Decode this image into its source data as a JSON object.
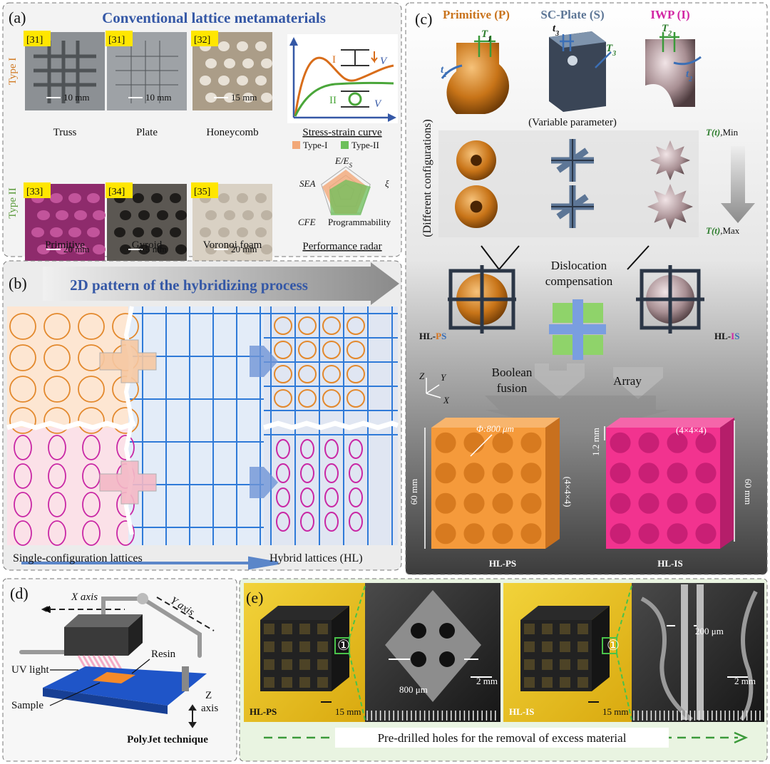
{
  "panel_a": {
    "label": "(a)",
    "title": "Conventional lattice metamaterials",
    "type_i": "Type I",
    "type_ii": "Type II",
    "samples": [
      {
        "ref": "[31]",
        "scale": "10 mm",
        "name": "Truss"
      },
      {
        "ref": "[31]",
        "scale": "10 mm",
        "name": "Plate"
      },
      {
        "ref": "[32]",
        "scale": "15 mm",
        "name": "Honeycomb"
      },
      {
        "ref": "[33]",
        "scale": "20 mm",
        "name": "Primitive"
      },
      {
        "ref": "[34]",
        "scale": "5 mm",
        "name": "Gyroid"
      },
      {
        "ref": "[35]",
        "scale": "20 mm",
        "name": "Voronoi foam"
      }
    ],
    "curve": {
      "title": "Stress-strain curve",
      "labels": [
        "I",
        "II"
      ],
      "v": [
        "V",
        "V"
      ]
    },
    "radar": {
      "title": "Performance radar",
      "legend": [
        "Type-I",
        "Type-II"
      ],
      "axis_e": {
        "main": "E/E",
        "sub": "S"
      },
      "axes": [
        "SEA",
        "ξ",
        "CFE",
        "Programmability"
      ]
    }
  },
  "panel_b": {
    "label": "(b)",
    "title": "2D pattern of the hybridizing process",
    "left_caption": "Single-configuration lattices",
    "right_caption": "Hybrid lattices (HL)"
  },
  "panel_c": {
    "label": "(c)",
    "primitive": {
      "name": "Primitive (P)",
      "T": {
        "main": "T",
        "sub": "1"
      },
      "t": {
        "main": "t",
        "sub": "1"
      }
    },
    "plate": {
      "name": "SC-Plate (S)",
      "T": {
        "main": "T",
        "sub": "3"
      },
      "t": {
        "main": "t",
        "sub": "3"
      }
    },
    "iwp": {
      "name": "IWP (I)",
      "T": {
        "main": "T",
        "sub": "2"
      },
      "t": {
        "main": "t",
        "sub": "2"
      }
    },
    "variable": "(Variable parameter)",
    "configurations": "(Different configurations)",
    "min": {
      "var": "T(t)",
      "suffix": ",Min"
    },
    "max": {
      "var": "T(t)",
      "suffix": ",Max"
    },
    "dislocation": [
      "Dislocation",
      "compensation"
    ],
    "hl_ps": {
      "prefix": "HL-",
      "parts": [
        "P",
        "S"
      ]
    },
    "hl_is": {
      "prefix": "HL-",
      "parts": [
        "I",
        "S"
      ]
    },
    "boolean": [
      "Boolean",
      "fusion"
    ],
    "array": "Array",
    "axes": [
      "Z",
      "Y",
      "X"
    ],
    "phi": "Φ:800 μm",
    "grid_ps": "(4×4×4)",
    "grid_is": "(4×4×4)",
    "wall": "1.2 mm",
    "height_ps": "60 mm",
    "height_is": "60 mm",
    "cube_ps": "HL-PS",
    "cube_is": "HL-IS"
  },
  "panel_d": {
    "label": "(d)",
    "x_axis": "X axis",
    "y_axis": "Y axis",
    "resin": "Resin",
    "uv": "UV light",
    "z_axis": [
      "Z",
      "axis"
    ],
    "sample": "Sample",
    "technique": "PolyJet technique"
  },
  "panel_e": {
    "label": "(e)",
    "ps": {
      "name": "HL-PS",
      "scale": "15 mm",
      "marker": "①",
      "hole": "800 μm",
      "micro_scale": "2 mm"
    },
    "is": {
      "name": "HL-IS",
      "scale": "15 mm",
      "marker": "①",
      "hole": "200 μm",
      "micro_scale": "2 mm"
    },
    "caption": "Pre-drilled holes for the removal of excess material"
  }
}
